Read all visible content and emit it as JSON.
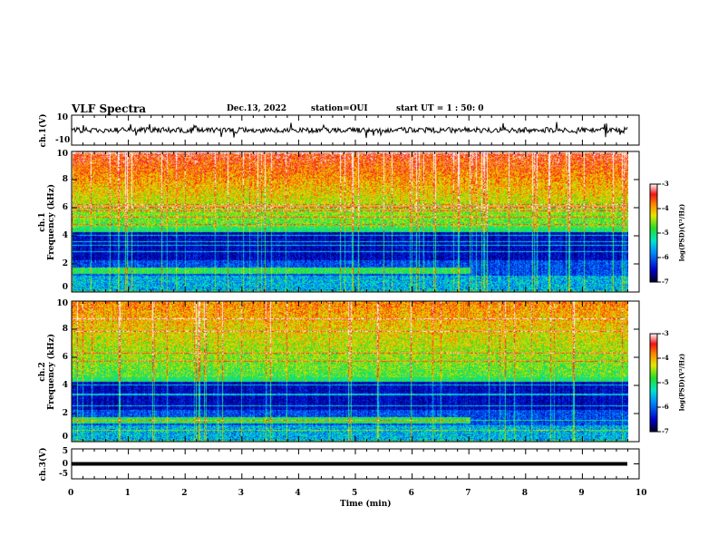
{
  "header": {
    "title": "VLF Spectra",
    "date": "Dec.13, 2022",
    "station": "station=OUI",
    "start": "start  UT =   1 : 50: 0"
  },
  "chart_data": [
    {
      "type": "line",
      "name": "ch1 waveform",
      "ylabel": "ch.1(V)",
      "ylim": [
        -10,
        10
      ],
      "yticks": [
        "10",
        "-10"
      ],
      "xlim": [
        0,
        10
      ],
      "data_end_min": 9.8,
      "baseline": 0
    },
    {
      "type": "heatmap",
      "name": "ch1 spectrogram",
      "ylabel": "ch.1\nFrequency (kHz)",
      "ylim": [
        0,
        10
      ],
      "yticks": [
        "0",
        "2",
        "4",
        "6",
        "8",
        "10"
      ],
      "xlim": [
        0,
        10
      ],
      "colorbar": {
        "label": "log(PSD)(V²/Hz)",
        "range": [
          -7,
          -3
        ],
        "ticks": [
          "-3",
          "-4",
          "-5",
          "-6",
          "-7"
        ]
      }
    },
    {
      "type": "heatmap",
      "name": "ch2 spectrogram",
      "ylabel": "ch.2\nFrequency (kHz)",
      "ylim": [
        0,
        10
      ],
      "yticks": [
        "0",
        "2",
        "4",
        "6",
        "8",
        "10"
      ],
      "xlim": [
        0,
        10
      ],
      "colorbar": {
        "label": "log(PSD)(V²/Hz)",
        "range": [
          -7,
          -3
        ],
        "ticks": [
          "-3",
          "-4",
          "-5",
          "-6",
          "-7"
        ]
      }
    },
    {
      "type": "line",
      "name": "ch3 waveform",
      "ylabel": "ch.3(V)",
      "ylim": [
        -5,
        5
      ],
      "yticks": [
        "5",
        "0",
        "-5"
      ],
      "xlim": [
        0,
        10
      ],
      "data_end_min": 9.8,
      "baseline": 0,
      "xlabel": "Time (min)",
      "xticks": [
        "0",
        "1",
        "2",
        "3",
        "4",
        "5",
        "6",
        "7",
        "8",
        "9",
        "10"
      ]
    }
  ]
}
